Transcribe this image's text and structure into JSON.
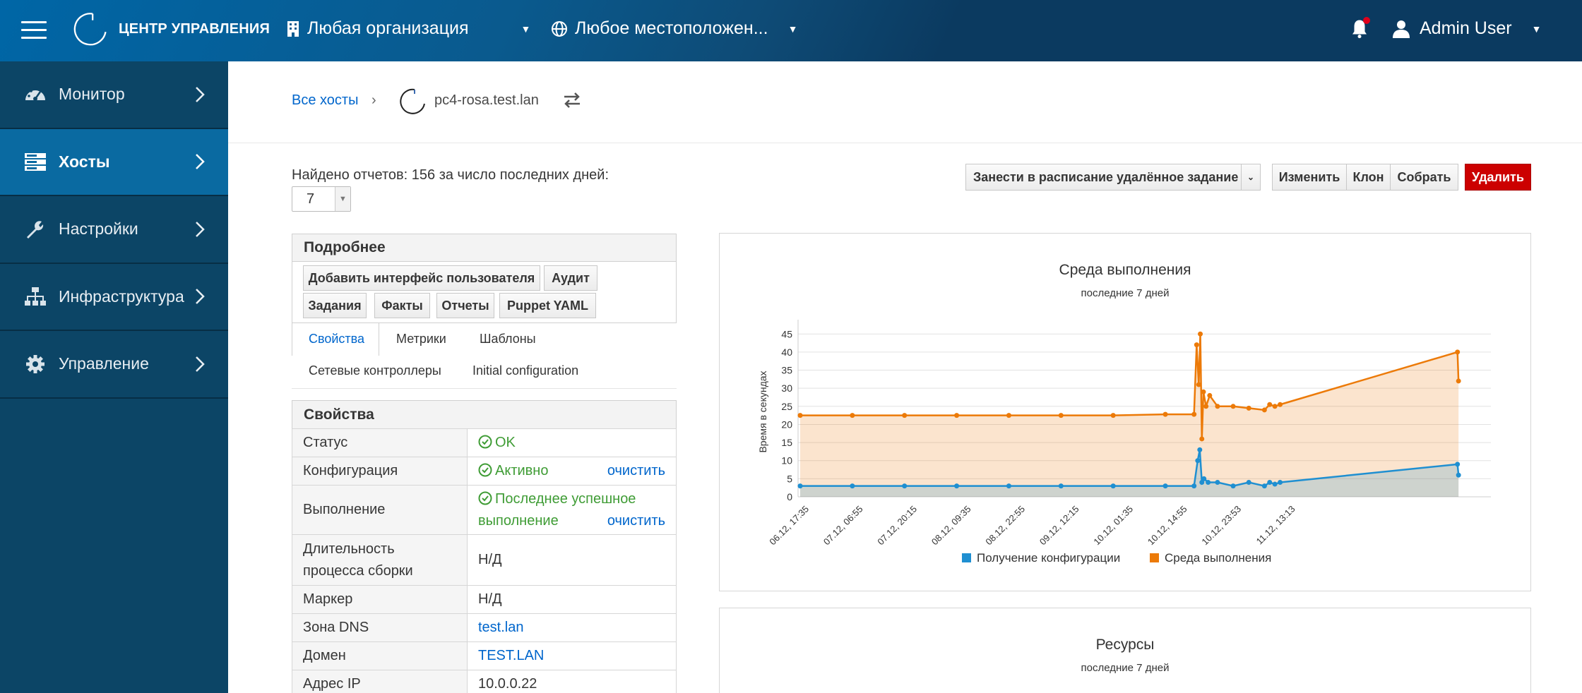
{
  "topbar": {
    "brand": "ЦЕНТР УПРАВЛЕНИЯ",
    "org": "Любая организация",
    "location": "Любое местоположен...",
    "user": "Admin User"
  },
  "sidebar": {
    "items": [
      {
        "label": "Монитор",
        "icon": "dashboard-icon"
      },
      {
        "label": "Хосты",
        "icon": "server-icon",
        "active": true
      },
      {
        "label": "Настройки",
        "icon": "wrench-icon"
      },
      {
        "label": "Инфраструктура",
        "icon": "sitemap-icon"
      },
      {
        "label": "Управление",
        "icon": "gear-icon"
      }
    ]
  },
  "breadcrumb": {
    "all_hosts": "Все хосты",
    "sep": "›",
    "host": "pc4-rosa.test.lan"
  },
  "reports": {
    "text": "Найдено отчетов: 156 за число последних дней:",
    "days": "7"
  },
  "actions": {
    "schedule": "Занести в расписание удалённое задание",
    "edit": "Изменить",
    "clone": "Клон",
    "build": "Собрать",
    "delete": "Удалить"
  },
  "details": {
    "title": "Подробнее",
    "buttons": [
      "Добавить интерфейс пользователя",
      "Аудит",
      "Задания",
      "Факты",
      "Отчеты",
      "Puppet YAML"
    ]
  },
  "tabs": [
    "Свойства",
    "Метрики",
    "Шаблоны",
    "Сетевые контроллеры",
    "Initial configuration"
  ],
  "properties": {
    "title": "Свойства",
    "rows": [
      {
        "key": "Статус",
        "value": "OK"
      },
      {
        "key": "Конфигурация",
        "value": "Активно",
        "action": "очистить"
      },
      {
        "key": "Выполнение",
        "value_line1": "Последнее успешное",
        "value_line2": "выполнение",
        "action": "очистить"
      },
      {
        "key_line1": "Длительность",
        "key_line2": "процесса сборки",
        "value": "Н/Д"
      },
      {
        "key": "Маркер",
        "value": "Н/Д"
      },
      {
        "key": "Зона DNS",
        "value": "test.lan"
      },
      {
        "key": "Домен",
        "value": "TEST.LAN"
      },
      {
        "key": "Адрес IP",
        "value": "10.0.0.22"
      }
    ]
  },
  "chart_data": [
    {
      "type": "area",
      "title": "Среда выполнения",
      "subtitle": "последние 7 дней",
      "ylabel": "Время в секундах",
      "xlabel": "",
      "ylim": [
        0,
        47
      ],
      "yticks": [
        0,
        5,
        10,
        15,
        20,
        25,
        30,
        35,
        40,
        45
      ],
      "x_tick_labels": [
        "06.12, 17:35",
        "07.12, 06:55",
        "07.12, 20:15",
        "08.12, 09:35",
        "08.12, 22:55",
        "09.12, 12:15",
        "10.12, 01:35",
        "10.12, 14:55",
        "10.12, 23:53",
        "11.12, 13:13"
      ],
      "legend": "bottom",
      "colors": {
        "config": "#1f8fd1",
        "runtime": "#ec7a08"
      },
      "series": [
        {
          "name": "Получение конфигурации",
          "color": "#1f8fd1",
          "points": [
            [
              0,
              3
            ],
            [
              1,
              3
            ],
            [
              2,
              3
            ],
            [
              3,
              3
            ],
            [
              4,
              3
            ],
            [
              5,
              3
            ],
            [
              6,
              3
            ],
            [
              7,
              3
            ],
            [
              7.55,
              3
            ],
            [
              7.62,
              10
            ],
            [
              7.66,
              13
            ],
            [
              7.7,
              4
            ],
            [
              7.74,
              5
            ],
            [
              7.82,
              4
            ],
            [
              8.0,
              4
            ],
            [
              8.3,
              3
            ],
            [
              8.6,
              4
            ],
            [
              8.9,
              3
            ],
            [
              9.0,
              4
            ],
            [
              9.1,
              3.5
            ],
            [
              9.2,
              4
            ],
            [
              12.6,
              9
            ],
            [
              12.62,
              6
            ]
          ]
        },
        {
          "name": "Среда выполнения",
          "color": "#ec7a08",
          "points": [
            [
              0,
              22.5
            ],
            [
              1,
              22.5
            ],
            [
              2,
              22.5
            ],
            [
              3,
              22.5
            ],
            [
              4,
              22.5
            ],
            [
              5,
              22.5
            ],
            [
              6,
              22.5
            ],
            [
              7,
              22.8
            ],
            [
              7.55,
              22.8
            ],
            [
              7.6,
              42
            ],
            [
              7.64,
              31
            ],
            [
              7.67,
              45
            ],
            [
              7.7,
              16
            ],
            [
              7.73,
              29
            ],
            [
              7.78,
              25
            ],
            [
              7.85,
              28
            ],
            [
              8.0,
              25
            ],
            [
              8.3,
              25
            ],
            [
              8.6,
              24.5
            ],
            [
              8.9,
              24
            ],
            [
              9.0,
              25.5
            ],
            [
              9.1,
              25
            ],
            [
              9.2,
              25.5
            ],
            [
              12.6,
              40
            ],
            [
              12.62,
              32
            ]
          ]
        }
      ]
    },
    {
      "type": "area",
      "title": "Ресурсы",
      "subtitle": "последние 7 дней"
    }
  ]
}
